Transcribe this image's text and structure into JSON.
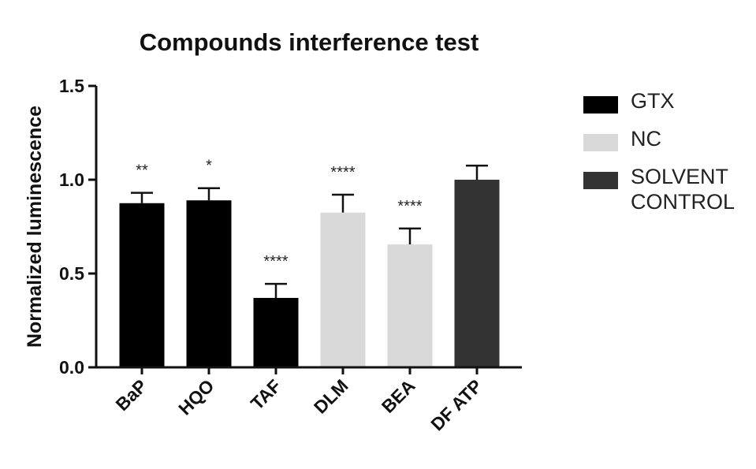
{
  "chart_data": {
    "type": "bar",
    "title": "Compounds interference test",
    "ylabel": "Normalized luminescence",
    "xlabel": "",
    "ylim": [
      0,
      1.5
    ],
    "yticks": [
      0.0,
      0.5,
      1.0,
      1.5
    ],
    "ytick_labels": [
      "0.0",
      "0.5",
      "1.0",
      "1.5"
    ],
    "categories": [
      "BaP",
      "HQO",
      "TAF",
      "DLM",
      "BEA",
      "DF ATP"
    ],
    "values": [
      0.875,
      0.89,
      0.37,
      0.825,
      0.655,
      1.0
    ],
    "errors": [
      0.055,
      0.065,
      0.075,
      0.095,
      0.085,
      0.075
    ],
    "significance": [
      "**",
      "*",
      "****",
      "****",
      "****",
      ""
    ],
    "groups": [
      "GTX",
      "GTX",
      "GTX",
      "NC",
      "NC",
      "SOLVENT CONTROL"
    ],
    "legend_position": "right",
    "grid": false
  },
  "legend": {
    "items": [
      {
        "label": "GTX",
        "color": "#000000"
      },
      {
        "label": "NC",
        "color": "#d9d9d9"
      },
      {
        "label": "SOLVENT\nCONTROL",
        "color": "#333333"
      }
    ]
  },
  "colors": {
    "axis": "#111111",
    "error_bar": "#111111"
  }
}
